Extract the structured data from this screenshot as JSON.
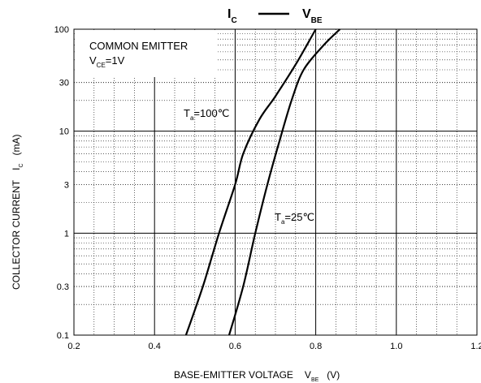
{
  "chart_data": {
    "type": "line",
    "title_ic": "I",
    "title_ic_sub": "C",
    "title_vbe": "V",
    "title_vbe_sub": "BE",
    "xlabel": "BASE-EMITTER VOLTAGE",
    "xlabel_sym": "V",
    "xlabel_sym_sub": "BE",
    "xlabel_unit": "(V)",
    "ylabel": "COLLECTOR CURRENT",
    "ylabel_sym": "I",
    "ylabel_sym_sub": "C",
    "ylabel_unit": "(mA)",
    "xlim": [
      0.2,
      1.2
    ],
    "ylim": [
      0.1,
      100
    ],
    "yscale": "log",
    "grid": true,
    "x_ticks": [
      "0.2",
      "0.4",
      "0.6",
      "0.8",
      "1.0",
      "1.2"
    ],
    "y_ticks": [
      "0.1",
      "0.3",
      "1",
      "3",
      "10",
      "30",
      "100"
    ],
    "y_tick_values": [
      0.1,
      0.3,
      1,
      3,
      10,
      30,
      100
    ],
    "box_line1": "COMMON EMITTER",
    "box_line2_sym": "V",
    "box_line2_sub": "CE",
    "box_line2_val": "=1V",
    "series": [
      {
        "label_sym": "T",
        "label_sub": "a",
        "label_val": "=100℃",
        "x": [
          0.478,
          0.52,
          0.56,
          0.6,
          0.62,
          0.66,
          0.7,
          0.75,
          0.8
        ],
        "y": [
          0.1,
          0.3,
          1.0,
          3.0,
          6.0,
          13.0,
          22.0,
          45.0,
          100.0
        ]
      },
      {
        "label_sym": "T",
        "label_sub": "a",
        "label_val": "=25℃",
        "x": [
          0.585,
          0.62,
          0.65,
          0.68,
          0.71,
          0.74,
          0.77,
          0.82,
          0.86
        ],
        "y": [
          0.1,
          0.3,
          1.0,
          3.0,
          8.0,
          20.0,
          40.0,
          70.0,
          100.0
        ]
      }
    ]
  }
}
